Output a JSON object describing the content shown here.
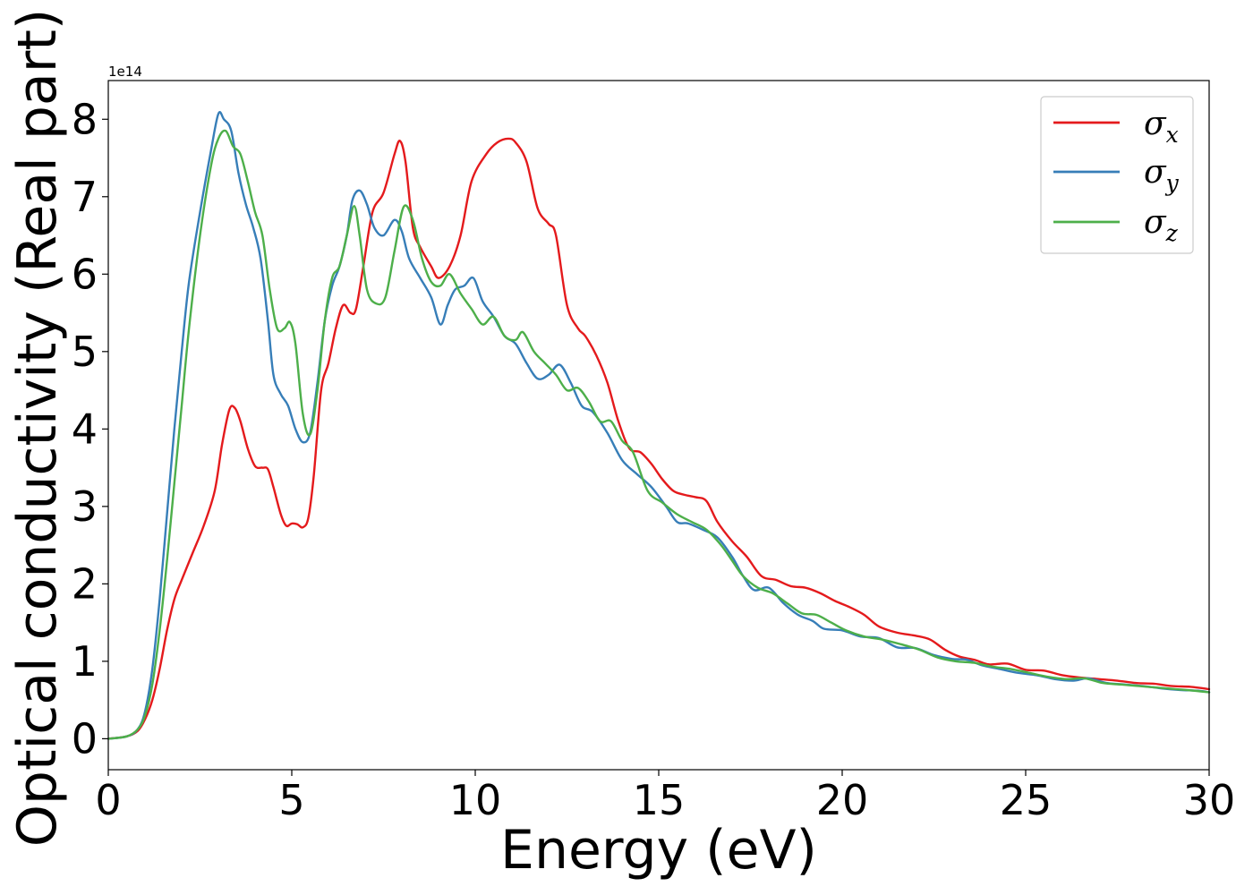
{
  "chart_data": {
    "type": "line",
    "title": "",
    "xlabel": "Energy (eV)",
    "ylabel": "Optical conductivity (Real part)",
    "y_offset_label": "1e14",
    "xlim": [
      0,
      30
    ],
    "ylim": [
      -0.4,
      8.5
    ],
    "x_ticks": [
      0,
      5,
      10,
      15,
      20,
      25,
      30
    ],
    "x_tick_labels": [
      "0",
      "5",
      "10",
      "15",
      "20",
      "25",
      "30"
    ],
    "y_ticks": [
      0,
      1,
      2,
      3,
      4,
      5,
      6,
      7,
      8
    ],
    "y_tick_labels": [
      "0",
      "1",
      "2",
      "3",
      "4",
      "5",
      "6",
      "7",
      "8"
    ],
    "grid": false,
    "legend_position": "top-right",
    "series": [
      {
        "name": "σx",
        "legend_symbol": "σ",
        "legend_subscript": "x",
        "color": "#e41a1c",
        "points": [
          [
            0,
            0
          ],
          [
            0.5,
            0.03
          ],
          [
            0.8,
            0.1
          ],
          [
            1.0,
            0.25
          ],
          [
            1.2,
            0.5
          ],
          [
            1.4,
            0.9
          ],
          [
            1.6,
            1.4
          ],
          [
            1.8,
            1.8
          ],
          [
            2.0,
            2.05
          ],
          [
            2.3,
            2.4
          ],
          [
            2.6,
            2.75
          ],
          [
            2.9,
            3.2
          ],
          [
            3.1,
            3.8
          ],
          [
            3.3,
            4.25
          ],
          [
            3.45,
            4.27
          ],
          [
            3.6,
            4.1
          ],
          [
            3.8,
            3.75
          ],
          [
            4.0,
            3.52
          ],
          [
            4.2,
            3.5
          ],
          [
            4.35,
            3.48
          ],
          [
            4.5,
            3.25
          ],
          [
            4.7,
            2.9
          ],
          [
            4.85,
            2.75
          ],
          [
            5.0,
            2.78
          ],
          [
            5.15,
            2.77
          ],
          [
            5.3,
            2.73
          ],
          [
            5.45,
            2.85
          ],
          [
            5.6,
            3.4
          ],
          [
            5.8,
            4.5
          ],
          [
            6.0,
            4.85
          ],
          [
            6.2,
            5.3
          ],
          [
            6.4,
            5.6
          ],
          [
            6.6,
            5.5
          ],
          [
            6.75,
            5.55
          ],
          [
            6.95,
            6.1
          ],
          [
            7.2,
            6.8
          ],
          [
            7.5,
            7.05
          ],
          [
            7.8,
            7.55
          ],
          [
            7.95,
            7.72
          ],
          [
            8.1,
            7.45
          ],
          [
            8.3,
            6.6
          ],
          [
            8.5,
            6.35
          ],
          [
            8.8,
            6.1
          ],
          [
            9.0,
            5.95
          ],
          [
            9.3,
            6.1
          ],
          [
            9.6,
            6.5
          ],
          [
            9.9,
            7.2
          ],
          [
            10.3,
            7.55
          ],
          [
            10.6,
            7.7
          ],
          [
            10.9,
            7.75
          ],
          [
            11.1,
            7.7
          ],
          [
            11.4,
            7.45
          ],
          [
            11.7,
            6.85
          ],
          [
            12.0,
            6.65
          ],
          [
            12.2,
            6.5
          ],
          [
            12.5,
            5.6
          ],
          [
            12.8,
            5.3
          ],
          [
            13.0,
            5.2
          ],
          [
            13.3,
            4.95
          ],
          [
            13.6,
            4.6
          ],
          [
            13.9,
            4.1
          ],
          [
            14.2,
            3.75
          ],
          [
            14.5,
            3.7
          ],
          [
            14.8,
            3.55
          ],
          [
            15.1,
            3.35
          ],
          [
            15.4,
            3.2
          ],
          [
            15.7,
            3.15
          ],
          [
            16.0,
            3.12
          ],
          [
            16.3,
            3.07
          ],
          [
            16.6,
            2.8
          ],
          [
            17.0,
            2.55
          ],
          [
            17.4,
            2.35
          ],
          [
            17.8,
            2.1
          ],
          [
            18.2,
            2.05
          ],
          [
            18.6,
            1.97
          ],
          [
            19.0,
            1.95
          ],
          [
            19.4,
            1.88
          ],
          [
            19.8,
            1.78
          ],
          [
            20.2,
            1.7
          ],
          [
            20.6,
            1.6
          ],
          [
            21.0,
            1.45
          ],
          [
            21.5,
            1.37
          ],
          [
            22.0,
            1.33
          ],
          [
            22.4,
            1.28
          ],
          [
            22.8,
            1.15
          ],
          [
            23.2,
            1.06
          ],
          [
            23.6,
            1.02
          ],
          [
            24.0,
            0.96
          ],
          [
            24.5,
            0.97
          ],
          [
            25.0,
            0.89
          ],
          [
            25.5,
            0.88
          ],
          [
            26.0,
            0.82
          ],
          [
            26.5,
            0.79
          ],
          [
            27.0,
            0.77
          ],
          [
            27.5,
            0.75
          ],
          [
            28.0,
            0.72
          ],
          [
            28.5,
            0.71
          ],
          [
            29.0,
            0.68
          ],
          [
            29.5,
            0.67
          ],
          [
            30.0,
            0.64
          ]
        ]
      },
      {
        "name": "σy",
        "legend_symbol": "σ",
        "legend_subscript": "y",
        "color": "#377eb8",
        "points": [
          [
            0,
            0
          ],
          [
            0.5,
            0.03
          ],
          [
            0.8,
            0.12
          ],
          [
            1.0,
            0.35
          ],
          [
            1.2,
            0.9
          ],
          [
            1.4,
            1.8
          ],
          [
            1.6,
            2.9
          ],
          [
            1.8,
            4.0
          ],
          [
            2.0,
            5.0
          ],
          [
            2.2,
            5.9
          ],
          [
            2.5,
            6.8
          ],
          [
            2.8,
            7.6
          ],
          [
            3.0,
            8.07
          ],
          [
            3.15,
            8.0
          ],
          [
            3.35,
            7.85
          ],
          [
            3.55,
            7.3
          ],
          [
            3.75,
            6.9
          ],
          [
            3.95,
            6.6
          ],
          [
            4.15,
            6.2
          ],
          [
            4.35,
            5.4
          ],
          [
            4.5,
            4.7
          ],
          [
            4.7,
            4.45
          ],
          [
            4.9,
            4.3
          ],
          [
            5.1,
            4.0
          ],
          [
            5.3,
            3.83
          ],
          [
            5.5,
            3.95
          ],
          [
            5.7,
            4.6
          ],
          [
            5.9,
            5.4
          ],
          [
            6.1,
            5.85
          ],
          [
            6.3,
            6.1
          ],
          [
            6.5,
            6.5
          ],
          [
            6.65,
            6.95
          ],
          [
            6.85,
            7.08
          ],
          [
            7.05,
            6.9
          ],
          [
            7.25,
            6.6
          ],
          [
            7.5,
            6.5
          ],
          [
            7.8,
            6.7
          ],
          [
            8.0,
            6.55
          ],
          [
            8.2,
            6.2
          ],
          [
            8.5,
            5.95
          ],
          [
            8.8,
            5.7
          ],
          [
            9.05,
            5.35
          ],
          [
            9.25,
            5.6
          ],
          [
            9.45,
            5.8
          ],
          [
            9.7,
            5.85
          ],
          [
            9.95,
            5.95
          ],
          [
            10.2,
            5.65
          ],
          [
            10.5,
            5.45
          ],
          [
            10.8,
            5.2
          ],
          [
            11.1,
            5.1
          ],
          [
            11.4,
            4.85
          ],
          [
            11.7,
            4.65
          ],
          [
            12.0,
            4.7
          ],
          [
            12.3,
            4.83
          ],
          [
            12.6,
            4.6
          ],
          [
            12.9,
            4.3
          ],
          [
            13.2,
            4.22
          ],
          [
            13.6,
            3.95
          ],
          [
            14.0,
            3.6
          ],
          [
            14.4,
            3.42
          ],
          [
            14.8,
            3.25
          ],
          [
            15.2,
            3.0
          ],
          [
            15.5,
            2.8
          ],
          [
            15.8,
            2.78
          ],
          [
            16.2,
            2.7
          ],
          [
            16.6,
            2.6
          ],
          [
            17.0,
            2.35
          ],
          [
            17.3,
            2.1
          ],
          [
            17.6,
            1.92
          ],
          [
            18.0,
            1.95
          ],
          [
            18.4,
            1.75
          ],
          [
            18.8,
            1.6
          ],
          [
            19.2,
            1.52
          ],
          [
            19.5,
            1.42
          ],
          [
            20.0,
            1.4
          ],
          [
            20.5,
            1.32
          ],
          [
            21.0,
            1.3
          ],
          [
            21.5,
            1.18
          ],
          [
            22.0,
            1.17
          ],
          [
            22.5,
            1.08
          ],
          [
            23.0,
            1.03
          ],
          [
            23.4,
            1.02
          ],
          [
            23.8,
            0.95
          ],
          [
            24.3,
            0.9
          ],
          [
            24.8,
            0.85
          ],
          [
            25.3,
            0.82
          ],
          [
            25.8,
            0.77
          ],
          [
            26.3,
            0.75
          ],
          [
            26.7,
            0.78
          ],
          [
            27.2,
            0.72
          ],
          [
            27.7,
            0.7
          ],
          [
            28.2,
            0.68
          ],
          [
            28.7,
            0.65
          ],
          [
            29.2,
            0.63
          ],
          [
            29.7,
            0.62
          ],
          [
            30.0,
            0.6
          ]
        ]
      },
      {
        "name": "σz",
        "legend_symbol": "σ",
        "legend_subscript": "z",
        "color": "#4daf4a",
        "points": [
          [
            0,
            0
          ],
          [
            0.5,
            0.03
          ],
          [
            0.8,
            0.12
          ],
          [
            1.0,
            0.3
          ],
          [
            1.2,
            0.7
          ],
          [
            1.4,
            1.4
          ],
          [
            1.6,
            2.3
          ],
          [
            1.8,
            3.3
          ],
          [
            2.0,
            4.3
          ],
          [
            2.2,
            5.3
          ],
          [
            2.5,
            6.5
          ],
          [
            2.8,
            7.4
          ],
          [
            3.0,
            7.75
          ],
          [
            3.2,
            7.85
          ],
          [
            3.4,
            7.65
          ],
          [
            3.6,
            7.55
          ],
          [
            3.8,
            7.2
          ],
          [
            4.0,
            6.8
          ],
          [
            4.2,
            6.5
          ],
          [
            4.4,
            5.8
          ],
          [
            4.6,
            5.3
          ],
          [
            4.8,
            5.3
          ],
          [
            4.95,
            5.38
          ],
          [
            5.1,
            5.1
          ],
          [
            5.3,
            4.2
          ],
          [
            5.5,
            3.93
          ],
          [
            5.7,
            4.5
          ],
          [
            5.9,
            5.4
          ],
          [
            6.1,
            5.95
          ],
          [
            6.3,
            6.1
          ],
          [
            6.5,
            6.5
          ],
          [
            6.7,
            6.88
          ],
          [
            6.85,
            6.5
          ],
          [
            7.05,
            5.8
          ],
          [
            7.3,
            5.62
          ],
          [
            7.55,
            5.7
          ],
          [
            7.8,
            6.3
          ],
          [
            8.05,
            6.87
          ],
          [
            8.3,
            6.7
          ],
          [
            8.55,
            6.2
          ],
          [
            8.8,
            5.9
          ],
          [
            9.05,
            5.85
          ],
          [
            9.3,
            6.0
          ],
          [
            9.6,
            5.75
          ],
          [
            9.9,
            5.55
          ],
          [
            10.2,
            5.35
          ],
          [
            10.5,
            5.45
          ],
          [
            10.8,
            5.2
          ],
          [
            11.1,
            5.15
          ],
          [
            11.3,
            5.25
          ],
          [
            11.6,
            5.0
          ],
          [
            11.9,
            4.85
          ],
          [
            12.2,
            4.7
          ],
          [
            12.5,
            4.5
          ],
          [
            12.8,
            4.53
          ],
          [
            13.1,
            4.35
          ],
          [
            13.4,
            4.1
          ],
          [
            13.7,
            4.1
          ],
          [
            14.0,
            3.85
          ],
          [
            14.3,
            3.7
          ],
          [
            14.7,
            3.2
          ],
          [
            15.1,
            3.05
          ],
          [
            15.5,
            2.9
          ],
          [
            15.9,
            2.8
          ],
          [
            16.3,
            2.7
          ],
          [
            16.7,
            2.5
          ],
          [
            17.0,
            2.3
          ],
          [
            17.3,
            2.1
          ],
          [
            17.7,
            1.95
          ],
          [
            18.1,
            1.88
          ],
          [
            18.5,
            1.75
          ],
          [
            18.9,
            1.62
          ],
          [
            19.3,
            1.6
          ],
          [
            19.7,
            1.5
          ],
          [
            20.1,
            1.4
          ],
          [
            20.6,
            1.32
          ],
          [
            21.1,
            1.28
          ],
          [
            21.6,
            1.22
          ],
          [
            22.1,
            1.15
          ],
          [
            22.6,
            1.05
          ],
          [
            23.1,
            1.0
          ],
          [
            23.6,
            0.98
          ],
          [
            24.1,
            0.93
          ],
          [
            24.6,
            0.9
          ],
          [
            25.1,
            0.85
          ],
          [
            25.6,
            0.8
          ],
          [
            26.1,
            0.77
          ],
          [
            26.6,
            0.78
          ],
          [
            27.1,
            0.72
          ],
          [
            27.6,
            0.7
          ],
          [
            28.1,
            0.68
          ],
          [
            28.6,
            0.66
          ],
          [
            29.1,
            0.64
          ],
          [
            29.6,
            0.62
          ],
          [
            30.0,
            0.6
          ]
        ]
      }
    ]
  }
}
